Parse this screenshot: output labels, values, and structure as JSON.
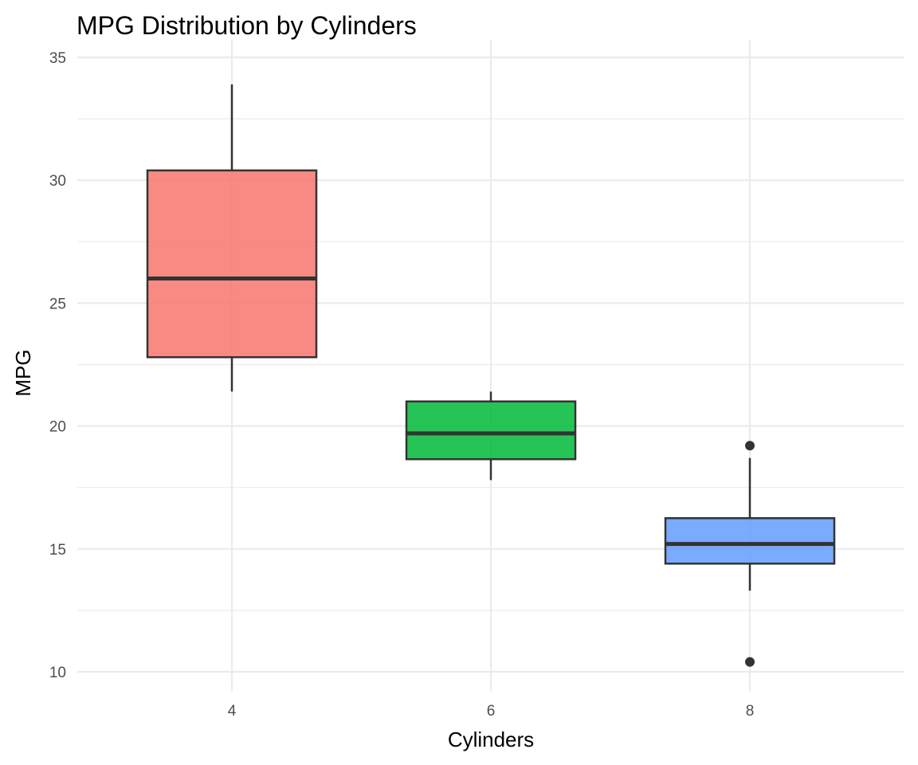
{
  "chart_data": {
    "type": "boxplot",
    "title": "MPG Distribution by Cylinders",
    "xlabel": "Cylinders",
    "ylabel": "MPG",
    "ylim": [
      9.4,
      35.6
    ],
    "yticks": [
      10,
      15,
      20,
      25,
      30,
      35
    ],
    "grid": true,
    "legend": "none",
    "categories": [
      "4",
      "6",
      "8"
    ],
    "boxes": [
      {
        "category": "4",
        "whisker_low": 21.4,
        "q1": 22.8,
        "median": 26.0,
        "q3": 30.4,
        "whisker_high": 33.9,
        "outliers": [],
        "color": "#F8766D"
      },
      {
        "category": "6",
        "whisker_low": 17.8,
        "q1": 18.65,
        "median": 19.7,
        "q3": 21.0,
        "whisker_high": 21.4,
        "outliers": [],
        "color": "#00BA38"
      },
      {
        "category": "8",
        "whisker_low": 13.3,
        "q1": 14.4,
        "median": 15.2,
        "q3": 16.25,
        "whisker_high": 18.7,
        "outliers": [
          10.4,
          19.2
        ],
        "color": "#619CFF"
      }
    ]
  }
}
